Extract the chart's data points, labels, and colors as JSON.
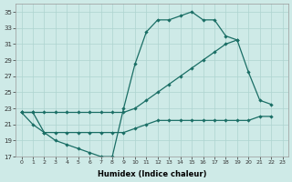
{
  "xlabel": "Humidex (Indice chaleur)",
  "bg_color": "#ceeae7",
  "grid_color": "#aed4d0",
  "line_color": "#1a6e65",
  "xlim": [
    -0.5,
    23.5
  ],
  "ylim": [
    17,
    36
  ],
  "xticks": [
    0,
    1,
    2,
    3,
    4,
    5,
    6,
    7,
    8,
    9,
    10,
    11,
    12,
    13,
    14,
    15,
    16,
    17,
    18,
    19,
    20,
    21,
    22,
    23
  ],
  "yticks": [
    17,
    19,
    21,
    23,
    25,
    27,
    29,
    31,
    33,
    35
  ],
  "series1_x": [
    0,
    1,
    2,
    3,
    4,
    5,
    6,
    7,
    8,
    9,
    10,
    11,
    12,
    13,
    14,
    15,
    16,
    17,
    18,
    19
  ],
  "series1_y": [
    22.5,
    21,
    20,
    19,
    18.5,
    18,
    17.5,
    17,
    17,
    23,
    28.5,
    32.5,
    34,
    34,
    34.5,
    35,
    34,
    34,
    32,
    31.5
  ],
  "series2_x": [
    0,
    1,
    2,
    3,
    4,
    5,
    6,
    7,
    8,
    9,
    10,
    11,
    12,
    13,
    14,
    15,
    16,
    17,
    18,
    19,
    20,
    21,
    22
  ],
  "series2_y": [
    22.5,
    22.5,
    22.5,
    22.5,
    22.5,
    22.5,
    22.5,
    22.5,
    22.5,
    22.5,
    23,
    24,
    25,
    26,
    27,
    28,
    29,
    30,
    31,
    31.5,
    27.5,
    24,
    23.5
  ],
  "series3_x": [
    0,
    1,
    2,
    3,
    4,
    5,
    6,
    7,
    8,
    9,
    10,
    11,
    12,
    13,
    14,
    15,
    16,
    17,
    18,
    19,
    20,
    21,
    22
  ],
  "series3_y": [
    22.5,
    22.5,
    20,
    20,
    20,
    20,
    20,
    20,
    20,
    20,
    20.5,
    21,
    21.5,
    21.5,
    21.5,
    21.5,
    21.5,
    21.5,
    21.5,
    21.5,
    21.5,
    22,
    22
  ]
}
